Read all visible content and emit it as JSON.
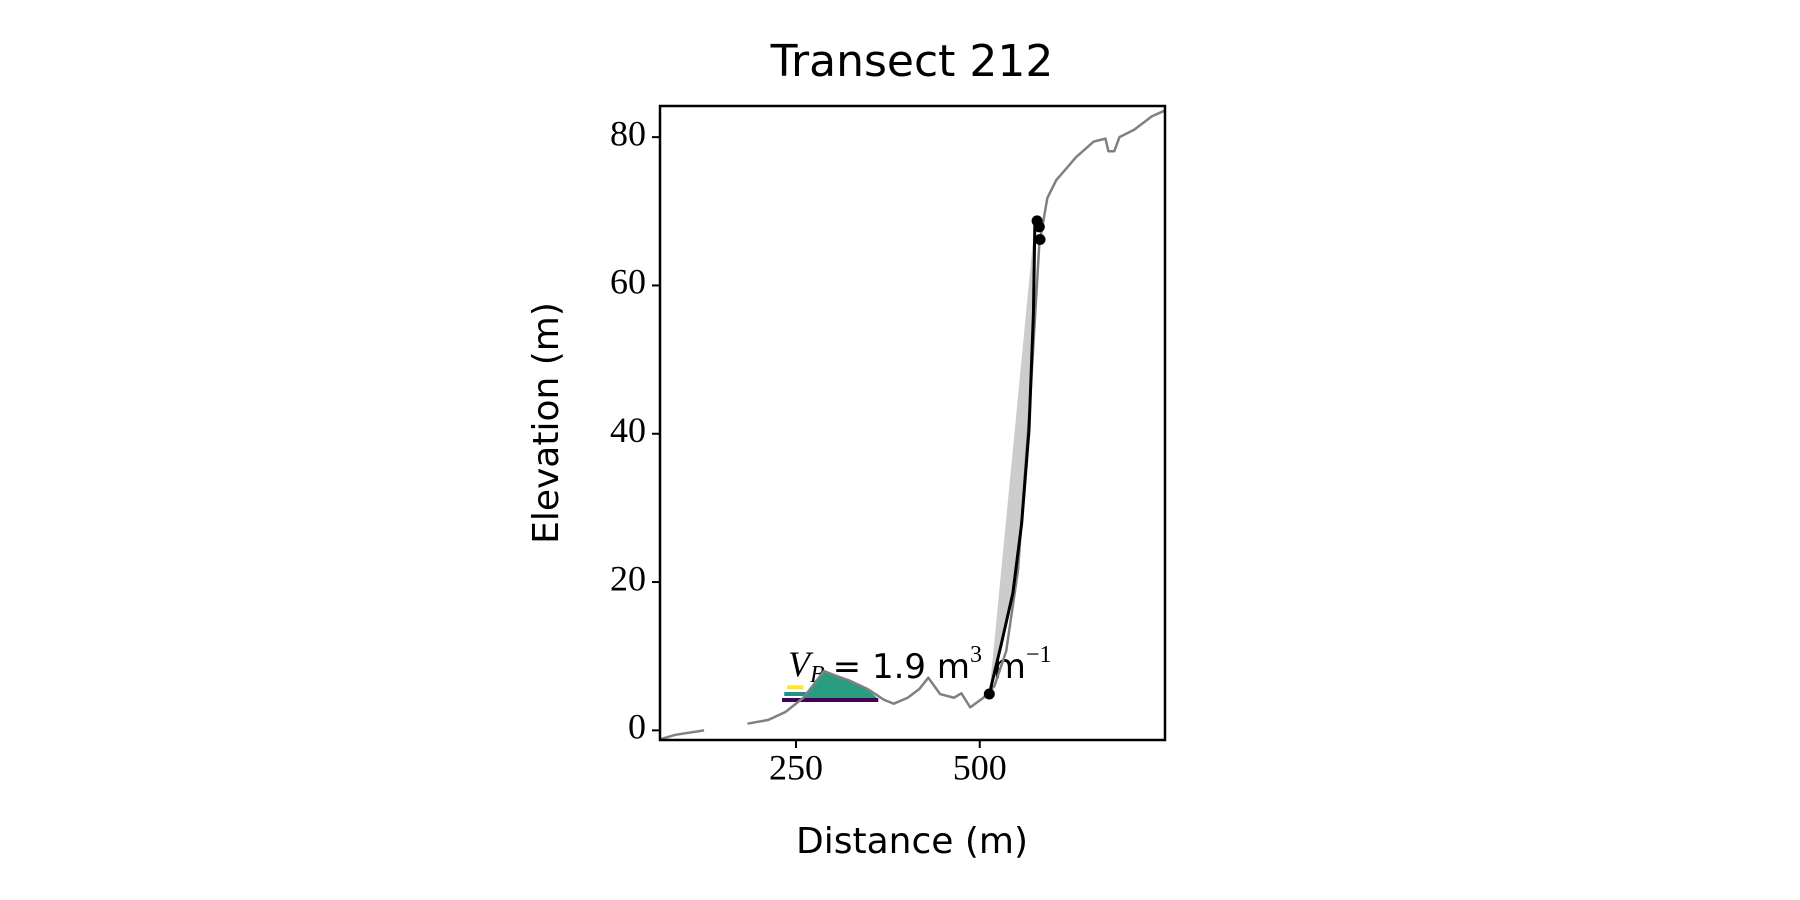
{
  "chart_data": {
    "type": "line",
    "title": "Transect 212",
    "x_label": "Distance (m)",
    "y_label": "Elevation (m)",
    "xlim": [
      65,
      752
    ],
    "ylim": [
      -1.3,
      84.2
    ],
    "xticks": [
      250,
      500
    ],
    "yticks": [
      0,
      20,
      40,
      60,
      80
    ],
    "series": [
      {
        "color": "#808080",
        "x": [
          65,
          86,
          125,
          null,
          184,
          212,
          236,
          260,
          275,
          288,
          301,
          323,
          347,
          370,
          383,
          402,
          418,
          430,
          446,
          465,
          475,
          487,
          505,
          520,
          536,
          552,
          568,
          581,
          592,
          604,
          631,
          655,
          671,
          675,
          683,
          690,
          710,
          734,
          752
        ],
        "values": [
          -1.2,
          -0.6,
          0,
          null,
          0.9,
          1.4,
          2.5,
          4.4,
          6.3,
          8,
          7.5,
          6.7,
          5.6,
          4.1,
          3.6,
          4.4,
          5.6,
          7.1,
          4.9,
          4.4,
          5,
          3.1,
          4.4,
          6,
          10.7,
          21.6,
          43.6,
          65.6,
          71.8,
          74.2,
          77.3,
          79.4,
          79.8,
          78.1,
          78.1,
          80,
          81,
          82.8,
          83.6
        ]
      },
      {
        "color": "#000000",
        "x": [
          513,
          529,
          545,
          557,
          567,
          573,
          575
        ],
        "values": [
          4.9,
          11.5,
          18.5,
          27.9,
          40.5,
          56.2,
          68.7
        ]
      }
    ],
    "cliff_fill_color": "#cccccc",
    "points": {
      "color": "#000000",
      "x": [
        513,
        578,
        581,
        582
      ],
      "values": [
        4.9,
        68.7,
        67.9,
        66.2
      ]
    },
    "beach_fill": {
      "color": "#2a9c82",
      "x": [
        260,
        275,
        288,
        301,
        323,
        347,
        360
      ],
      "values": [
        4.4,
        6.3,
        8,
        7.5,
        6.7,
        5.6,
        4.4
      ],
      "base": 4.1
    },
    "levels": [
      {
        "color": "#fde725",
        "x": [
          238,
          260
        ],
        "value": 5.8
      },
      {
        "color": "#21918c",
        "x": [
          234,
          265
        ],
        "value": 4.9
      },
      {
        "color": "#440154",
        "x": [
          231,
          362
        ],
        "value": 4.1
      }
    ],
    "annotation": {
      "symbol": "V",
      "subscript": "B",
      "text": "= 1.9 m",
      "exp1": "3",
      "unit2": " m",
      "exp2": "−1"
    }
  }
}
